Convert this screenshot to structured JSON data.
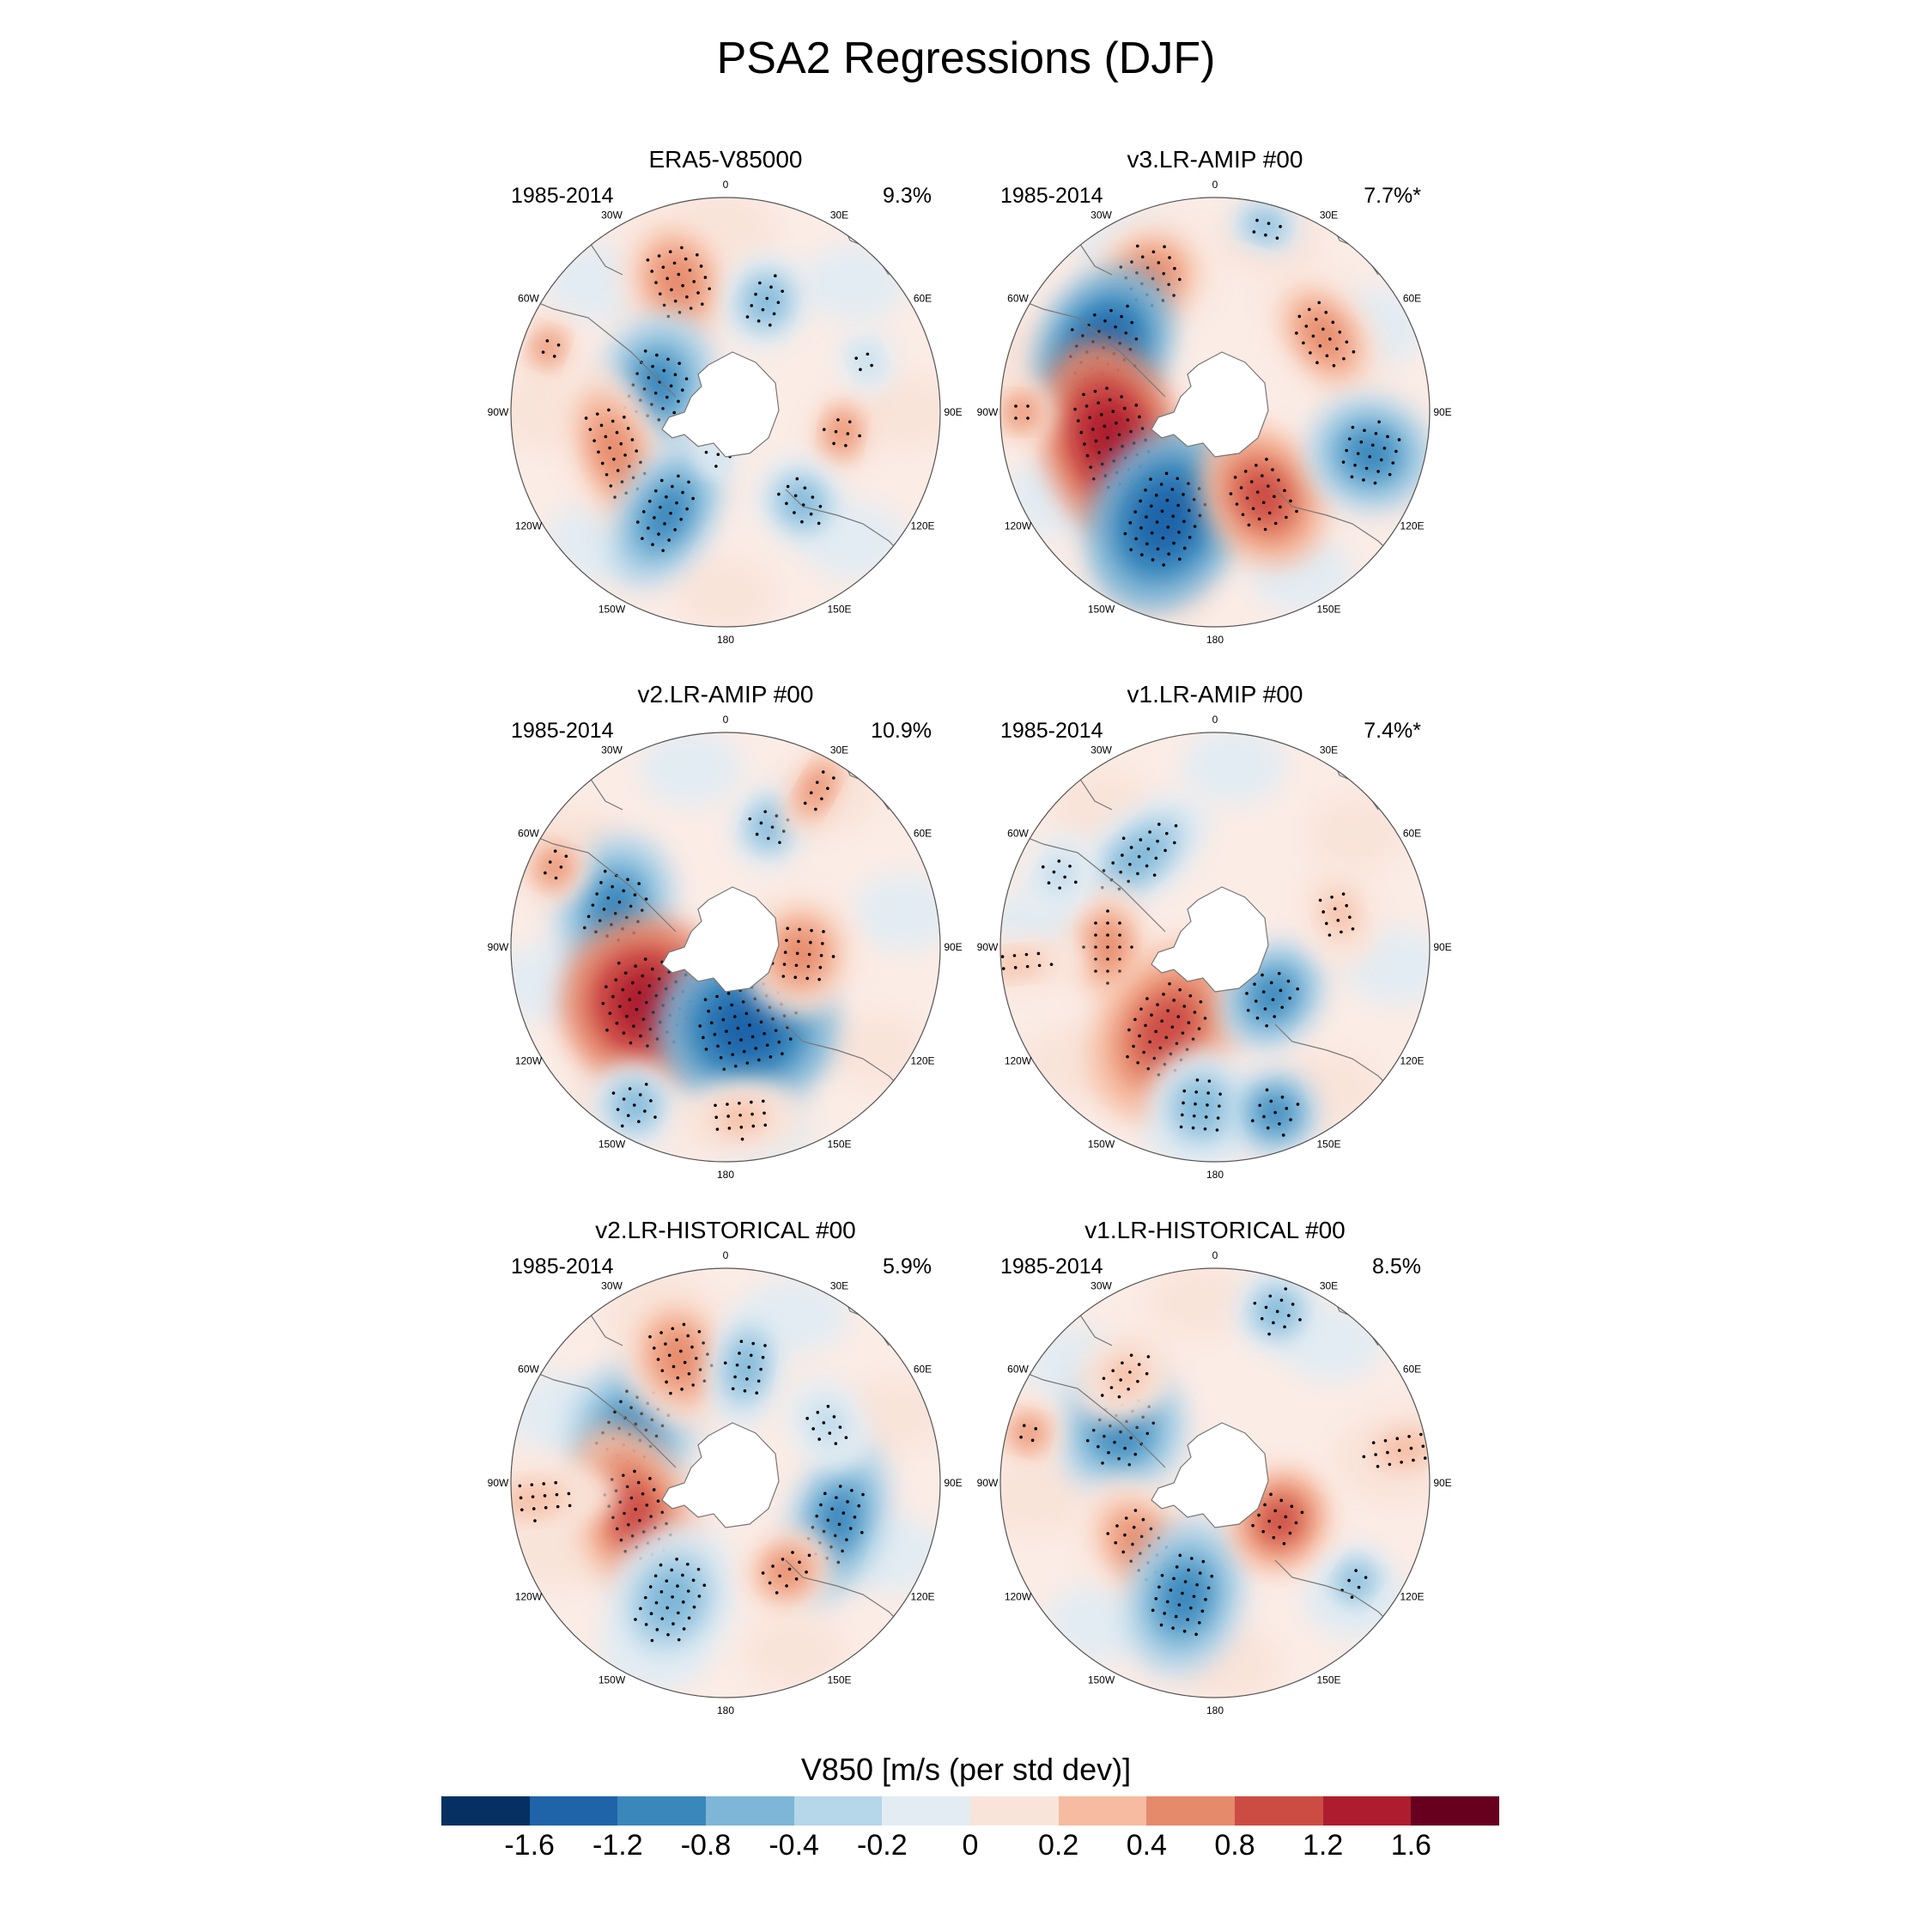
{
  "title": "PSA2 Regressions (DJF)",
  "panels": [
    {
      "title": "ERA5-V85000",
      "period": "1985-2014",
      "percent": "9.3%"
    },
    {
      "title": "v3.LR-AMIP  #00",
      "period": "1985-2014",
      "percent": "7.7%*"
    },
    {
      "title": "v2.LR-AMIP  #00",
      "period": "1985-2014",
      "percent": "10.9%"
    },
    {
      "title": "v1.LR-AMIP  #00",
      "period": "1985-2014",
      "percent": "7.4%*"
    },
    {
      "title": "v2.LR-HISTORICAL  #00",
      "period": "1985-2014",
      "percent": "5.9%"
    },
    {
      "title": "v1.LR-HISTORICAL  #00",
      "period": "1985-2014",
      "percent": "8.5%"
    }
  ],
  "longitude_labels": [
    "0",
    "30E",
    "60E",
    "90E",
    "120E",
    "150E",
    "180",
    "150W",
    "120W",
    "90W",
    "60W",
    "30W"
  ],
  "colorbar": {
    "title": "V850 [m/s (per std dev)]",
    "labels": [
      "-1.6",
      "-1.2",
      "-0.8",
      "-0.4",
      "-0.2",
      "0",
      "0.2",
      "0.4",
      "0.8",
      "1.2",
      "1.6"
    ],
    "colors": [
      "#053061",
      "#1f63a8",
      "#3a87bc",
      "#7db6d7",
      "#b6d6e9",
      "#e3ecf3",
      "#f9e4da",
      "#f6bba0",
      "#e68a6c",
      "#cc4c44",
      "#ad1d2f",
      "#67001f"
    ]
  },
  "map_colors": {
    "ocean": "#fbece6",
    "antarctica": "#ffffff",
    "border": "#555555",
    "coast": "#777777"
  }
}
